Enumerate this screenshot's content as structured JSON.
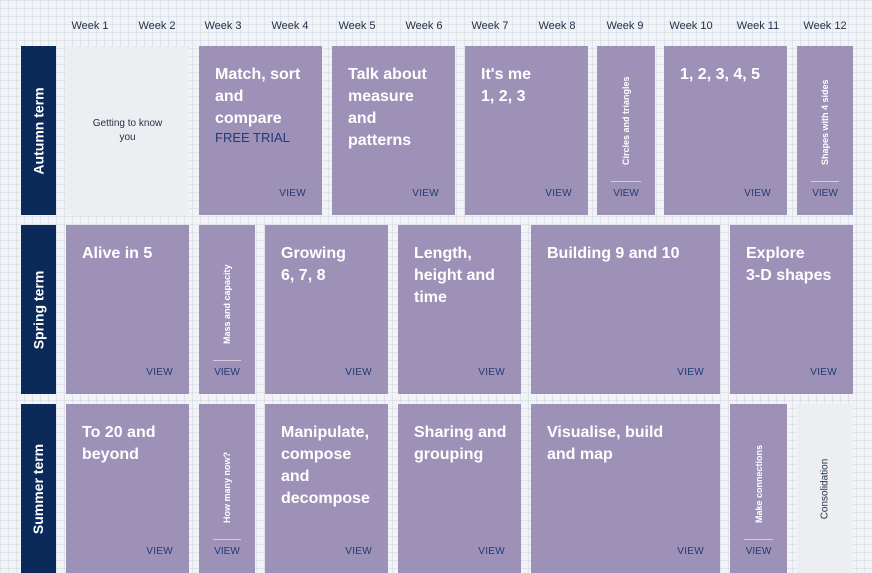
{
  "weeks": [
    "Week 1",
    "Week 2",
    "Week 3",
    "Week 4",
    "Week 5",
    "Week 6",
    "Week 7",
    "Week 8",
    "Week 9",
    "Week 10",
    "Week 11",
    "Week 12"
  ],
  "terms": {
    "autumn": "Autumn term",
    "spring": "Spring term",
    "summer": "Summer term"
  },
  "view_label": "VIEW",
  "autumn": {
    "getting_to_know": "Getting to know\nyou",
    "match": "Match, sort\nand\ncompare",
    "free_trial": "FREE TRIAL",
    "talk": "Talk about\nmeasure\nand\npatterns",
    "its_me": "It's me\n1, 2, 3",
    "circles": "Circles and triangles",
    "numbers": "1, 2, 3, 4, 5",
    "shapes4": "Shapes with 4 sides"
  },
  "spring": {
    "alive": "Alive in 5",
    "mass": "Mass and capacity",
    "growing": "Growing\n6, 7, 8",
    "length": "Length,\nheight and\ntime",
    "building": "Building 9 and 10",
    "explore": "Explore\n3-D shapes"
  },
  "summer": {
    "to20": "To 20 and\nbeyond",
    "howmany": "How many now?",
    "manipulate": "Manipulate,\ncompose\nand\ndecompose",
    "sharing": "Sharing and\ngrouping",
    "visualise": "Visualise, build\nand map",
    "connections": "Make connections",
    "consolidation": "Consolidation"
  },
  "colors": {
    "tile": "#9e91b8",
    "term_label": "#0b2a5a",
    "view_text": "#213a73",
    "grey_tile": "#eceef1"
  }
}
